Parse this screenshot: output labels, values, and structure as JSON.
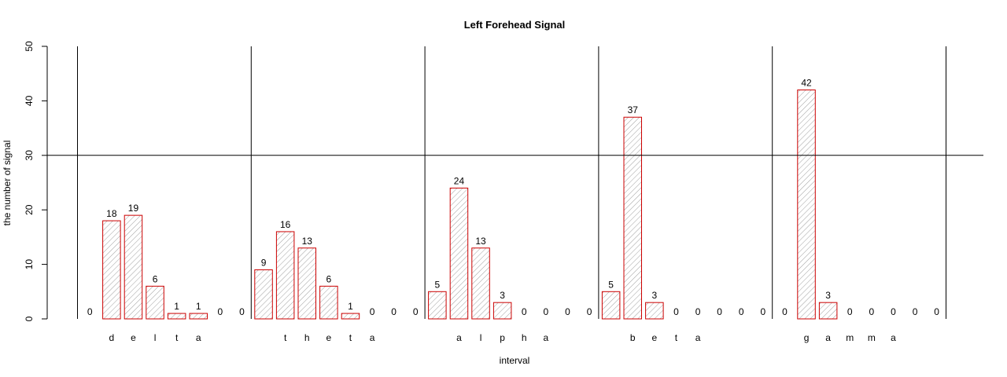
{
  "chart_data": {
    "type": "bar",
    "title": "Left Forehead Signal",
    "xlabel": "interval",
    "ylabel": "the number of signal",
    "ylim": [
      0,
      50
    ],
    "yticks": [
      "0",
      "10",
      "20",
      "30",
      "40",
      "50"
    ],
    "reference_line_y": 30,
    "colors": {
      "bar_border": "#cc0000",
      "hatch": "#888888",
      "lines": "#000000"
    },
    "groups": [
      {
        "letters": [
          "d",
          "e",
          "l",
          "t",
          "a"
        ],
        "values": [
          0,
          18,
          19,
          6,
          1,
          1,
          0,
          0
        ]
      },
      {
        "letters": [
          "t",
          "h",
          "e",
          "t",
          "a"
        ],
        "values": [
          9,
          16,
          13,
          6,
          1,
          0,
          0,
          0
        ]
      },
      {
        "letters": [
          "a",
          "l",
          "p",
          "h",
          "a"
        ],
        "values": [
          5,
          24,
          13,
          3,
          0,
          0,
          0,
          0
        ]
      },
      {
        "letters": [
          "b",
          "e",
          "t",
          "a"
        ],
        "values": [
          5,
          37,
          3,
          0,
          0,
          0,
          0,
          0
        ]
      },
      {
        "letters": [
          "g",
          "a",
          "m",
          "m",
          "a"
        ],
        "values": [
          0,
          42,
          3,
          0,
          0,
          0,
          0,
          0
        ]
      }
    ]
  }
}
